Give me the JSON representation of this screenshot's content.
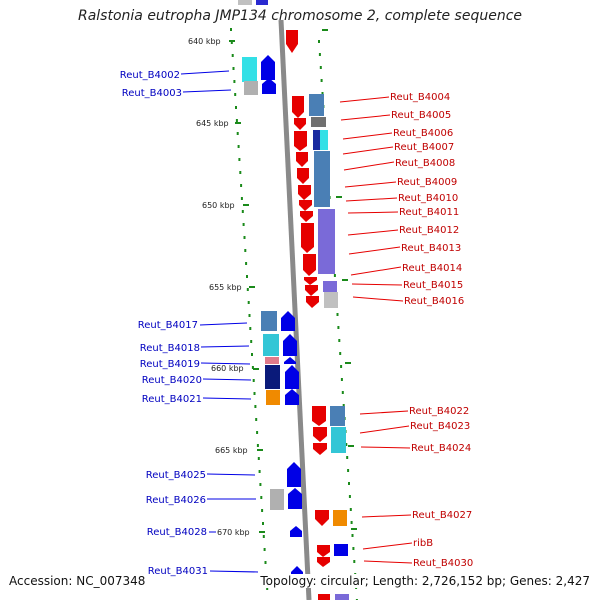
{
  "title": "Ralstonia eutropha JMP134 chromosome 2, complete sequence",
  "footer": {
    "accession": "Accession: NC_007348",
    "topology": "Topology: circular; Length: 2,726,152 bp; Genes: 2,427"
  },
  "colors": {
    "forward_strand": "#0000e6",
    "reverse_strand": "#e60000",
    "backbone": "#909090",
    "tick": "#1a8a1a"
  },
  "scale_labels": [
    "640 kbp",
    "645 kbp",
    "650 kbp",
    "655 kbp",
    "660 kbp",
    "665 kbp",
    "670 kbp"
  ],
  "genes": {
    "forward": [
      "Reut_B4002",
      "Reut_B4003",
      "Reut_B4017",
      "Reut_B4018",
      "Reut_B4019",
      "Reut_B4020",
      "Reut_B4021",
      "Reut_B4025",
      "Reut_B4026",
      "Reut_B4028",
      "Reut_B4031"
    ],
    "reverse": [
      "Reut_B4004",
      "Reut_B4005",
      "Reut_B4006",
      "Reut_B4007",
      "Reut_B4008",
      "Reut_B4009",
      "Reut_B4010",
      "Reut_B4011",
      "Reut_B4012",
      "Reut_B4013",
      "Reut_B4014",
      "Reut_B4015",
      "Reut_B4016",
      "Reut_B4022",
      "Reut_B4023",
      "Reut_B4024",
      "Reut_B4027",
      "ribB",
      "Reut_B4030"
    ]
  }
}
